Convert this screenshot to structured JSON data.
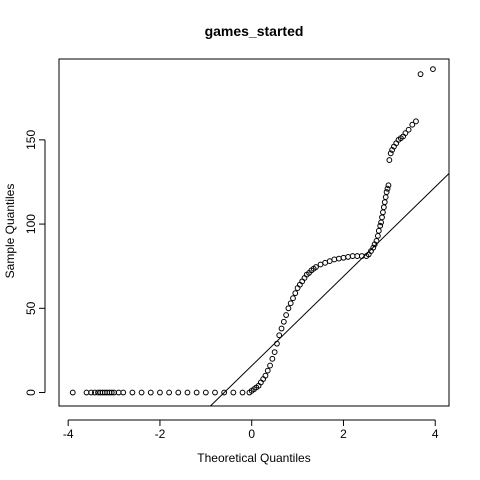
{
  "chart_data": {
    "type": "scatter",
    "title": "games_started",
    "xlabel": "Theoretical Quantiles",
    "ylabel": "Sample Quantiles",
    "xlim": [
      -4.2,
      4.3
    ],
    "ylim": [
      -8,
      198
    ],
    "x_ticks": [
      -4,
      -2,
      0,
      2,
      4
    ],
    "y_ticks": [
      0,
      50,
      100,
      150
    ],
    "grid": false,
    "reference_line": {
      "type": "qqline",
      "points": [
        [
          -0.9,
          -8
        ],
        [
          4.3,
          130
        ]
      ]
    },
    "point_color": "#000000",
    "series": [
      {
        "points": [
          [
            -3.9,
            0
          ],
          [
            -3.6,
            0
          ],
          [
            -3.5,
            0
          ],
          [
            -3.42,
            0
          ],
          [
            -3.35,
            0
          ],
          [
            -3.3,
            0
          ],
          [
            -3.25,
            0
          ],
          [
            -3.2,
            0
          ],
          [
            -3.15,
            0
          ],
          [
            -3.1,
            0
          ],
          [
            -3.05,
            0
          ],
          [
            -3.0,
            0
          ],
          [
            -2.9,
            0
          ],
          [
            -2.8,
            0
          ],
          [
            -2.6,
            0
          ],
          [
            -2.4,
            0
          ],
          [
            -2.2,
            0
          ],
          [
            -2.0,
            0
          ],
          [
            -1.8,
            0
          ],
          [
            -1.6,
            0
          ],
          [
            -1.4,
            0
          ],
          [
            -1.2,
            0
          ],
          [
            -1.0,
            0
          ],
          [
            -0.8,
            0
          ],
          [
            -0.6,
            0
          ],
          [
            -0.4,
            0
          ],
          [
            -0.2,
            0
          ],
          [
            -0.05,
            0
          ],
          [
            0.0,
            1
          ],
          [
            0.05,
            2
          ],
          [
            0.1,
            3
          ],
          [
            0.15,
            4
          ],
          [
            0.2,
            6
          ],
          [
            0.25,
            8
          ],
          [
            0.3,
            10
          ],
          [
            0.35,
            13
          ],
          [
            0.4,
            16
          ],
          [
            0.45,
            20
          ],
          [
            0.5,
            24
          ],
          [
            0.55,
            29
          ],
          [
            0.6,
            34
          ],
          [
            0.65,
            38
          ],
          [
            0.7,
            42
          ],
          [
            0.75,
            46
          ],
          [
            0.8,
            50
          ],
          [
            0.85,
            53
          ],
          [
            0.9,
            56
          ],
          [
            0.95,
            59
          ],
          [
            1.0,
            62
          ],
          [
            1.05,
            64
          ],
          [
            1.1,
            66
          ],
          [
            1.15,
            68
          ],
          [
            1.2,
            70
          ],
          [
            1.25,
            71
          ],
          [
            1.3,
            72.5
          ],
          [
            1.35,
            73.5
          ],
          [
            1.4,
            74.5
          ],
          [
            1.5,
            76
          ],
          [
            1.6,
            77
          ],
          [
            1.7,
            78
          ],
          [
            1.8,
            79
          ],
          [
            1.9,
            79.5
          ],
          [
            2.0,
            80
          ],
          [
            2.1,
            80.5
          ],
          [
            2.2,
            81
          ],
          [
            2.3,
            81
          ],
          [
            2.4,
            81
          ],
          [
            2.5,
            81
          ],
          [
            2.55,
            82
          ],
          [
            2.6,
            84
          ],
          [
            2.65,
            86
          ],
          [
            2.68,
            88
          ],
          [
            2.72,
            90
          ],
          [
            2.75,
            93
          ],
          [
            2.77,
            96
          ],
          [
            2.8,
            99
          ],
          [
            2.82,
            101
          ],
          [
            2.84,
            104
          ],
          [
            2.86,
            107
          ],
          [
            2.88,
            110
          ],
          [
            2.9,
            113
          ],
          [
            2.92,
            116
          ],
          [
            2.94,
            119
          ],
          [
            2.96,
            121
          ],
          [
            2.98,
            123
          ],
          [
            3.0,
            138
          ],
          [
            3.03,
            142
          ],
          [
            3.06,
            144
          ],
          [
            3.1,
            146
          ],
          [
            3.15,
            148
          ],
          [
            3.2,
            150
          ],
          [
            3.25,
            151
          ],
          [
            3.3,
            152
          ],
          [
            3.35,
            154
          ],
          [
            3.42,
            156
          ],
          [
            3.5,
            159
          ],
          [
            3.58,
            161
          ],
          [
            3.68,
            189
          ],
          [
            3.95,
            192
          ]
        ]
      }
    ]
  }
}
